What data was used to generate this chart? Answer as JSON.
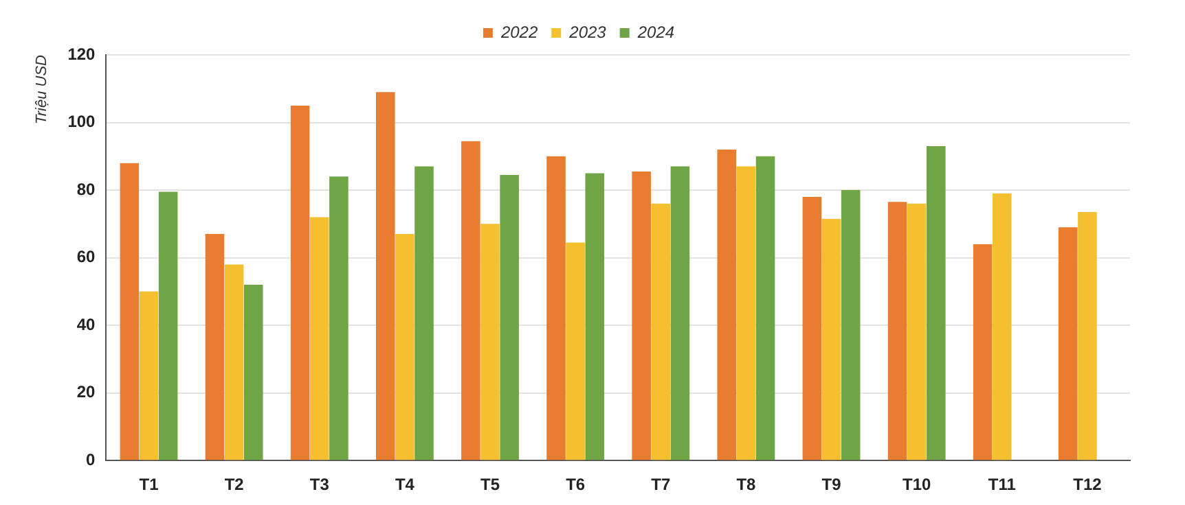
{
  "chart_data": {
    "type": "bar",
    "ylabel": "Triệu USD",
    "categories": [
      "T1",
      "T2",
      "T3",
      "T4",
      "T5",
      "T6",
      "T7",
      "T8",
      "T9",
      "T10",
      "T11",
      "T12"
    ],
    "series": [
      {
        "name": "2022",
        "color": "#e87d30",
        "values": [
          88,
          67,
          105,
          109,
          94.5,
          90,
          85.5,
          92,
          78,
          76.5,
          64,
          69
        ]
      },
      {
        "name": "2023",
        "color": "#f5c02f",
        "values": [
          50,
          58,
          72,
          67,
          70,
          64.5,
          76,
          87,
          71.5,
          76,
          79,
          73.5
        ]
      },
      {
        "name": "2024",
        "color": "#6fa544",
        "values": [
          79.5,
          52,
          84,
          87,
          84.5,
          85,
          87,
          90,
          80,
          93,
          null,
          null
        ]
      }
    ],
    "ylim": [
      0,
      120
    ],
    "yticks": [
      0,
      20,
      40,
      60,
      80,
      100,
      120
    ],
    "grid": "y",
    "legend": "top"
  }
}
